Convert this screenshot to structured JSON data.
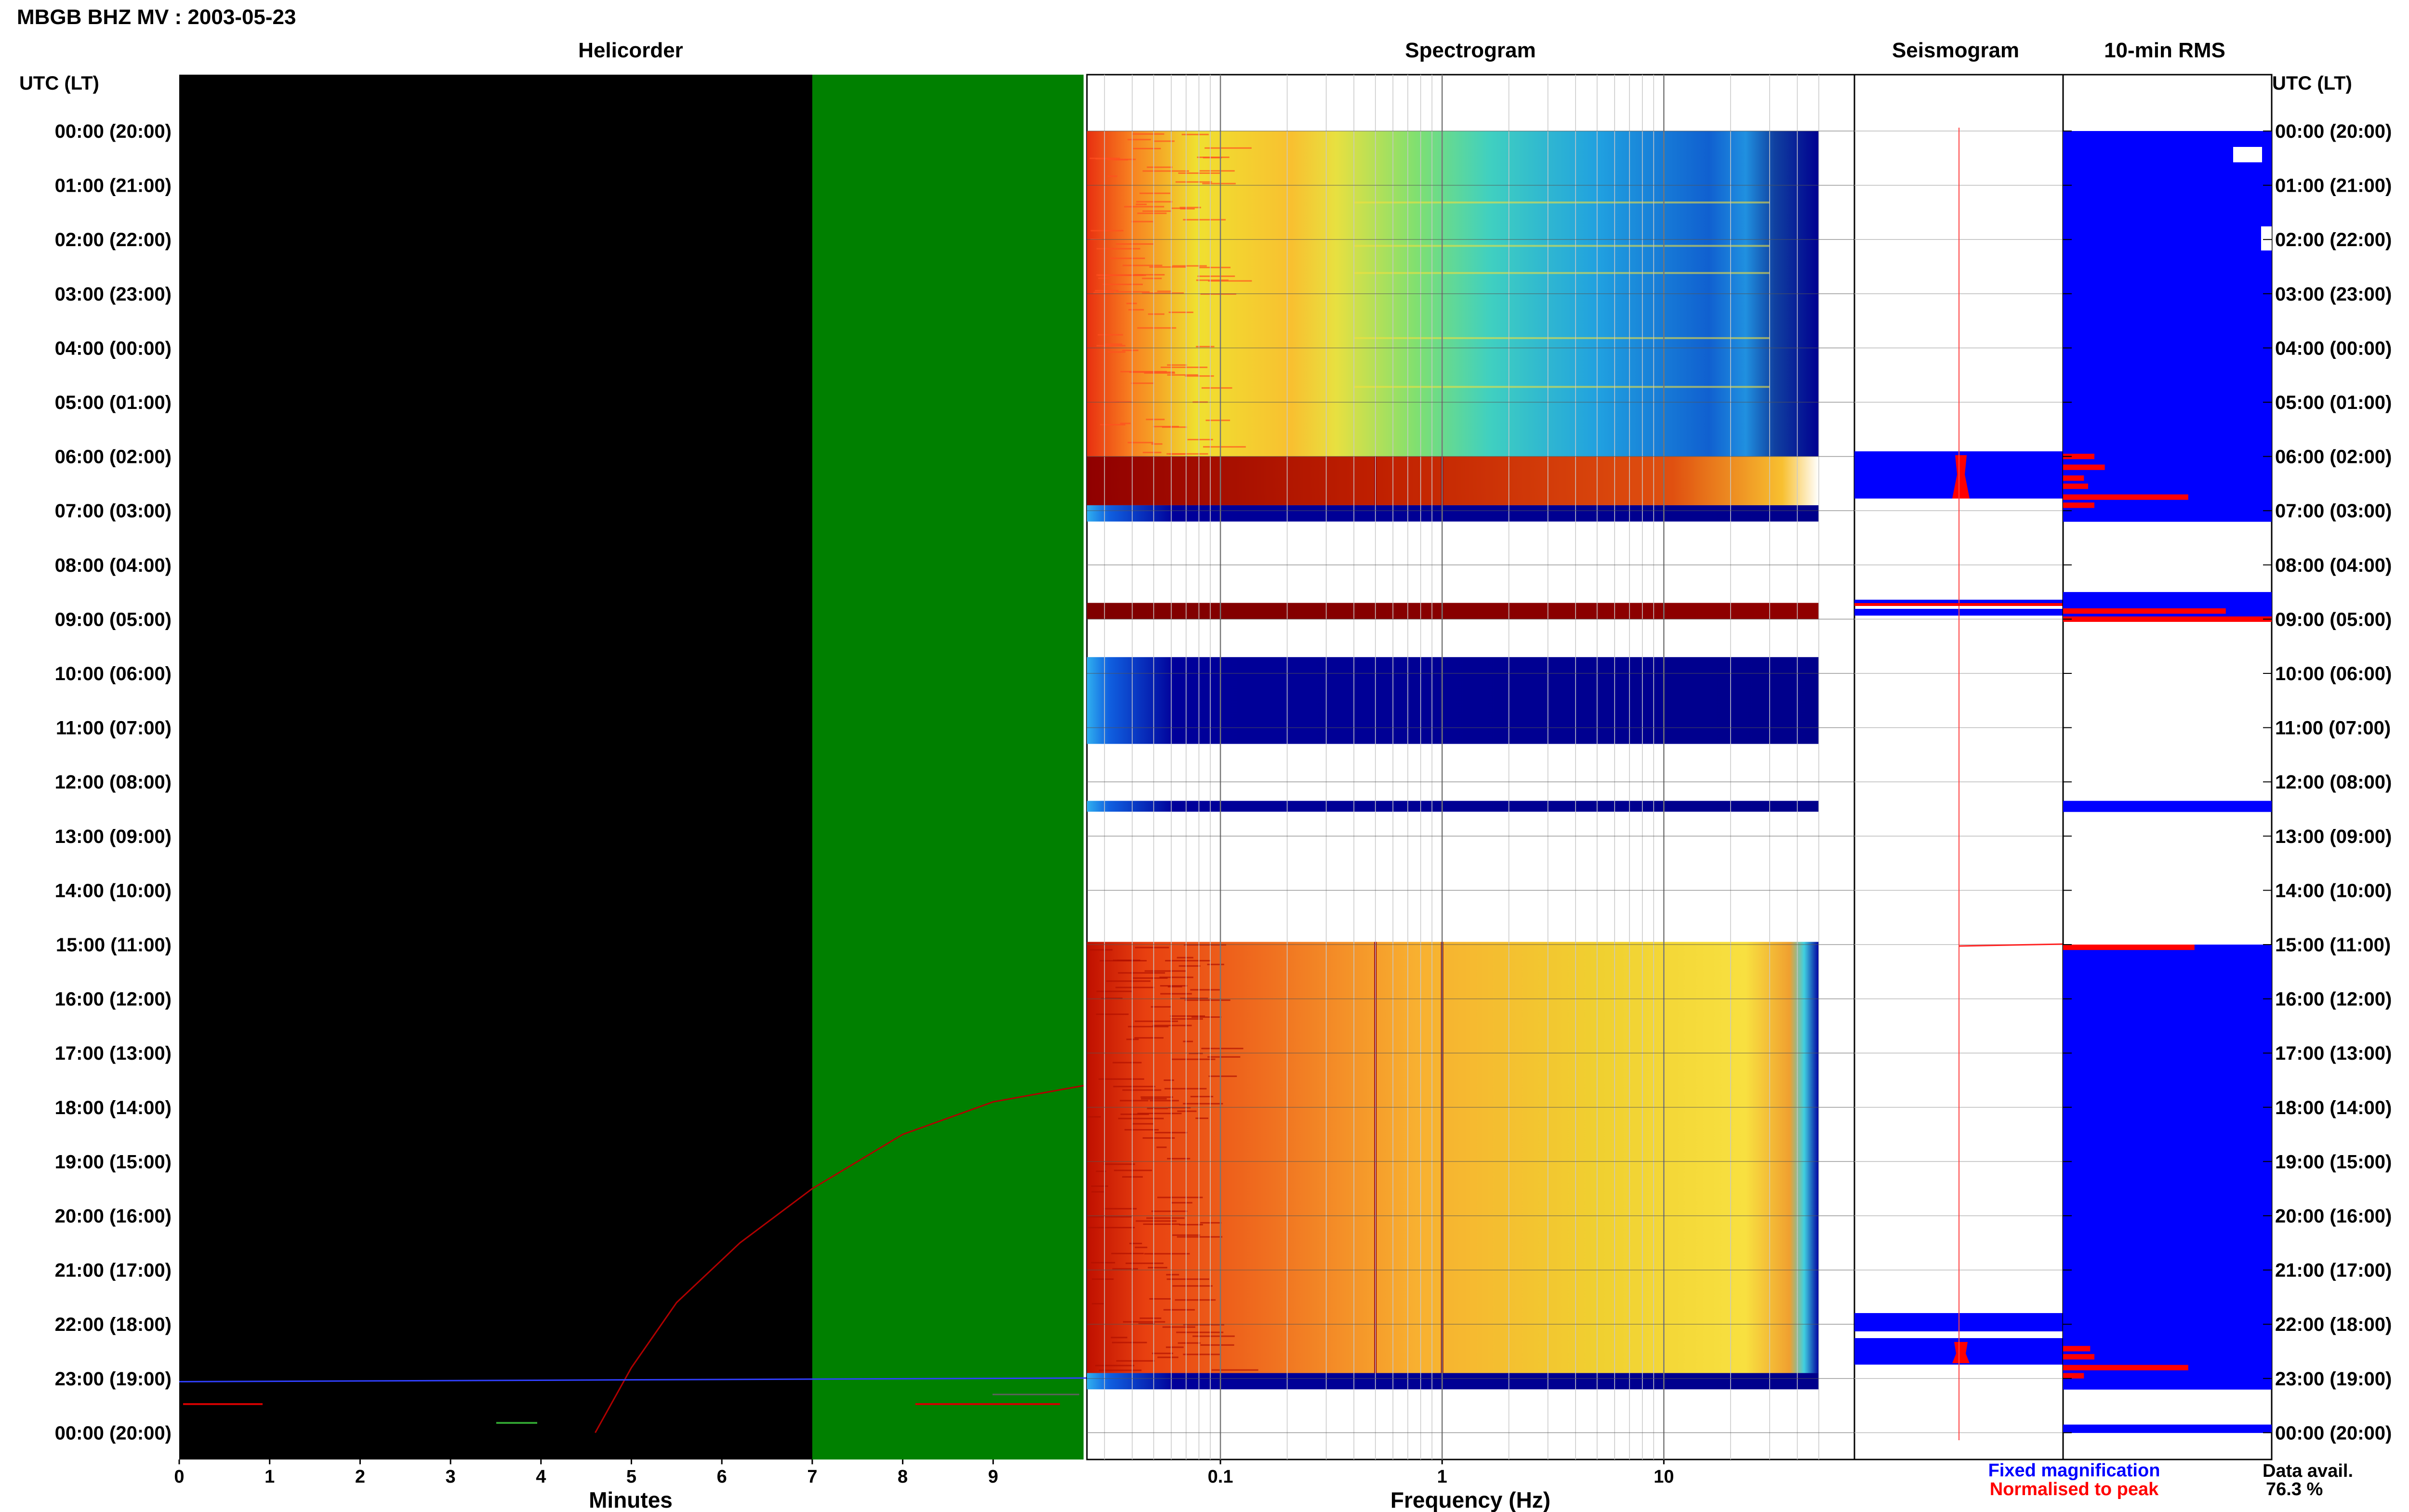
{
  "page_title": "MBGB BHZ MV : 2003-05-23",
  "left_axis_label": "UTC (LT)",
  "right_axis_label": "UTC (LT)",
  "time_labels": [
    "00:00 (20:00)",
    "01:00 (21:00)",
    "02:00 (22:00)",
    "03:00 (23:00)",
    "04:00 (00:00)",
    "05:00 (01:00)",
    "06:00 (02:00)",
    "07:00 (03:00)",
    "08:00 (04:00)",
    "09:00 (05:00)",
    "10:00 (06:00)",
    "11:00 (07:00)",
    "12:00 (08:00)",
    "13:00 (09:00)",
    "14:00 (10:00)",
    "15:00 (11:00)",
    "16:00 (12:00)",
    "17:00 (13:00)",
    "18:00 (14:00)",
    "19:00 (15:00)",
    "20:00 (16:00)",
    "21:00 (17:00)",
    "22:00 (18:00)",
    "23:00 (19:00)",
    "00:00 (20:00)"
  ],
  "colors": {
    "helicorder_bg": "#000000",
    "helicorder_green": "#008000",
    "trace_red": "#b00000",
    "fixed": "#0000ff",
    "normalised": "#ff0000",
    "spec_dark_blue": "#00008b"
  },
  "chart_data": [
    {
      "type": "line",
      "title": "Helicorder",
      "xlabel": "Minutes",
      "xlim": [
        0,
        10
      ],
      "x_ticks": [
        0,
        1,
        2,
        3,
        4,
        5,
        6,
        7,
        8,
        9
      ],
      "ylim_hours": [
        0,
        24
      ],
      "green_band_minutes": [
        7,
        10
      ],
      "trace_red_minutes_vs_hour": [
        [
          4.6,
          24.0
        ],
        [
          5.0,
          22.8
        ],
        [
          5.5,
          21.6
        ],
        [
          6.2,
          20.5
        ],
        [
          7.0,
          19.5
        ],
        [
          8.0,
          18.5
        ],
        [
          9.0,
          17.9
        ],
        [
          10.0,
          17.6
        ]
      ],
      "trace_blue_hour": 22.97
    },
    {
      "type": "heatmap",
      "title": "Spectrogram",
      "xlabel": "Frequency (Hz)",
      "x_scale": "log",
      "xlim": [
        0.025,
        50
      ],
      "x_ticks": [
        "0.1",
        "1",
        "10"
      ],
      "data_blocks_hours": [
        [
          0.0,
          6.0
        ],
        [
          6.0,
          6.9
        ],
        [
          6.9,
          7.2
        ],
        [
          8.7,
          9.0
        ],
        [
          9.7,
          11.3
        ],
        [
          12.35,
          12.55
        ],
        [
          14.95,
          22.9
        ],
        [
          22.9,
          23.2
        ]
      ]
    },
    {
      "type": "bar",
      "title": "Seismogram",
      "legend": [
        "Fixed magnification",
        "Normalised to peak"
      ],
      "legend_placement": "bottom"
    },
    {
      "type": "bar",
      "title": "10-min RMS",
      "orientation": "horizontal",
      "bin_minutes": 10,
      "fixed_hours": [
        [
          0.0,
          7.2
        ],
        [
          8.5,
          9.0
        ],
        [
          12.35,
          12.55
        ],
        [
          15.0,
          23.2
        ],
        [
          23.85,
          24.0
        ]
      ],
      "normalised_blocks": [
        [
          5.95,
          0.15
        ],
        [
          6.15,
          0.2
        ],
        [
          6.35,
          0.1
        ],
        [
          6.5,
          0.12
        ],
        [
          6.7,
          0.6
        ],
        [
          6.85,
          0.15
        ],
        [
          8.8,
          0.78
        ],
        [
          8.95,
          1.0
        ],
        [
          15.0,
          0.63
        ],
        [
          22.4,
          0.13
        ],
        [
          22.55,
          0.15
        ],
        [
          22.75,
          0.6
        ],
        [
          22.9,
          0.1
        ]
      ]
    }
  ],
  "data_availability": {
    "label": "Data avail.",
    "value": "76.3 %"
  }
}
